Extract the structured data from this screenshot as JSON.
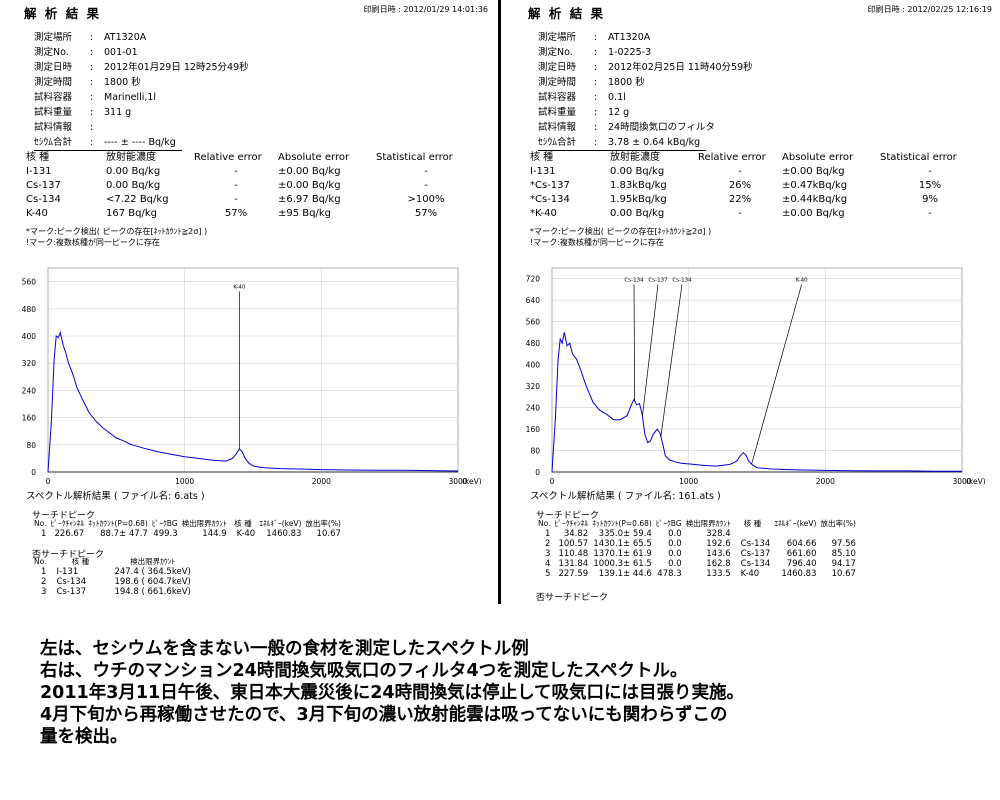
{
  "left": {
    "title": "解 析 結 果",
    "print_date": "印刷日時 : 2012/01/29 14:01:36",
    "meta": [
      {
        "label": "測定場所",
        "value": "AT1320A"
      },
      {
        "label": "測定No.",
        "value": "001-01"
      },
      {
        "label": "測定日時",
        "value": "2012年01月29日 12時25分49秒"
      },
      {
        "label": "測定時間",
        "value": "1800 秒"
      },
      {
        "label": "試料容器",
        "value": "Marinelli,1l"
      },
      {
        "label": "試料重量",
        "value": "311 g"
      },
      {
        "label": "試料情報",
        "value": ""
      },
      {
        "label": "ｾｼｳﾑ合計",
        "value": "---- ± ---- Bq/kg"
      }
    ],
    "table_headers": [
      "核 種",
      "放射能濃度",
      "Relative error",
      "Absolute error",
      "Statistical error"
    ],
    "nuclides": [
      {
        "mark": "",
        "name": "I-131",
        "conc": "0.00 Bq/kg",
        "rel": "-",
        "abs": "±0.00 Bq/kg",
        "stat": "-"
      },
      {
        "mark": "",
        "name": "Cs-137",
        "conc": "0.00 Bq/kg",
        "rel": "-",
        "abs": "±0.00 Bq/kg",
        "stat": "-"
      },
      {
        "mark": "",
        "name": "Cs-134",
        "conc": "<7.22 Bq/kg",
        "rel": "-",
        "abs": "±6.97 Bq/kg",
        "stat": ">100%"
      },
      {
        "mark": "",
        "name": "K-40",
        "conc": "167 Bq/kg",
        "rel": "57%",
        "abs": "±95  Bq/kg",
        "stat": "57%"
      }
    ],
    "notes": [
      "*マーク:ピーク検出( ピークの存在[ﾈｯﾄｶｳﾝﾄ≧2σ] )",
      "!マーク:複数核種が同一ピークに存在"
    ],
    "analysis_title": "スペクトル解析結果 ( ファイル名: 6.ats )",
    "search_peak_title": "サーチドピーク",
    "peak_headers": [
      "No.",
      "ﾋﾟｰｸﾁｬﾝﾈﾙ",
      "ﾈｯﾄｶｳﾝﾄ(P=0.68)",
      "ﾋﾟｰｸBG",
      "検出限界ｶｳﾝﾄ",
      "核 種",
      "ｴﾈﾙｷﾞｰ(keV)",
      "放出率(%)"
    ],
    "peaks": [
      [
        "1",
        "226.67",
        "88.7± 47.7",
        "499.3",
        "144.9",
        "K-40",
        "1460.83",
        "10.67"
      ]
    ],
    "nonsearch_title": "否サーチドピーク",
    "nonsearch_headers": [
      "No.",
      "核 種",
      "検出限界ｶｳﾝﾄ"
    ],
    "nonsearch": [
      [
        "1",
        "I-131",
        "247.4 ( 364.5keV)"
      ],
      [
        "2",
        "Cs-134",
        "198.6 ( 604.7keV)"
      ],
      [
        "3",
        "Cs-137",
        "194.8 ( 661.6keV)"
      ]
    ]
  },
  "right": {
    "title": "解 析 結 果",
    "print_date": "印刷日時 : 2012/02/25 12:16:19",
    "meta": [
      {
        "label": "測定場所",
        "value": "AT1320A"
      },
      {
        "label": "測定No.",
        "value": "1-0225-3"
      },
      {
        "label": "測定日時",
        "value": "2012年02月25日 11時40分59秒"
      },
      {
        "label": "測定時間",
        "value": "1800 秒"
      },
      {
        "label": "試料容器",
        "value": "0.1l"
      },
      {
        "label": "試料重量",
        "value": "12 g"
      },
      {
        "label": "試料情報",
        "value": "24時間換気口のフィルタ"
      },
      {
        "label": "ｾｼｳﾑ合計",
        "value": "3.78 ± 0.64 kBq/kg"
      }
    ],
    "table_headers": [
      "核 種",
      "放射能濃度",
      "Relative error",
      "Absolute error",
      "Statistical error"
    ],
    "nuclides": [
      {
        "mark": "",
        "name": "I-131",
        "conc": "0.00 Bq/kg",
        "rel": "-",
        "abs": "±0.00 Bq/kg",
        "stat": "-"
      },
      {
        "mark": "*",
        "name": "Cs-137",
        "conc": "1.83kBq/kg",
        "rel": "26%",
        "abs": "±0.47kBq/kg",
        "stat": "15%"
      },
      {
        "mark": "*",
        "name": "Cs-134",
        "conc": "1.95kBq/kg",
        "rel": "22%",
        "abs": "±0.44kBq/kg",
        "stat": "9%"
      },
      {
        "mark": "*",
        "name": "K-40",
        "conc": "0.00 Bq/kg",
        "rel": "-",
        "abs": "±0.00 Bq/kg",
        "stat": "-"
      }
    ],
    "notes": [
      "*マーク:ピーク検出( ピークの存在[ﾈｯﾄｶｳﾝﾄ≧2σ] )",
      "!マーク:複数核種が同一ピークに存在"
    ],
    "analysis_title": "スペクトル解析結果 ( ファイル名: 161.ats )",
    "search_peak_title": "サーチドピーク",
    "peak_headers": [
      "No.",
      "ﾋﾟｰｸﾁｬﾝﾈﾙ",
      "ﾈｯﾄｶｳﾝﾄ(P=0.68)",
      "ﾋﾟｰｸBG",
      "検出限界ｶｳﾝﾄ",
      "核 種",
      "ｴﾈﾙｷﾞｰ(keV)",
      "放出率(%)"
    ],
    "peaks": [
      [
        "1",
        "34.82",
        "335.0± 59.4",
        "0.0",
        "328.4",
        "",
        "",
        ""
      ],
      [
        "2",
        "100.57",
        "1430.1± 65.5",
        "0.0",
        "192.6",
        "Cs-134",
        "604.66",
        "97.56"
      ],
      [
        "3",
        "110.48",
        "1370.1± 61.9",
        "0.0",
        "143.6",
        "Cs-137",
        "661.60",
        "85.10"
      ],
      [
        "4",
        "131.84",
        "1000.3± 61.5",
        "0.0",
        "162.8",
        "Cs-134",
        "796.40",
        "94.17"
      ],
      [
        "5",
        "227.59",
        "139.1± 44.6",
        "478.3",
        "133.5",
        "K-40",
        "1460.83",
        "10.67"
      ]
    ],
    "nonsearch_title": "否サーチドピーク"
  },
  "chart_data": [
    {
      "type": "line",
      "x_unit": "(keV)",
      "xlim": [
        0,
        3000
      ],
      "ylim": [
        0,
        600
      ],
      "x_ticks": [
        0,
        1000,
        2000,
        3000
      ],
      "y_ticks": [
        0,
        80,
        160,
        240,
        320,
        400,
        480,
        560
      ],
      "grid": true,
      "color": "#0000dd",
      "series": [
        {
          "x": [
            0,
            25,
            45,
            60,
            75,
            90,
            110,
            130,
            150,
            180,
            210,
            250,
            300,
            350,
            400,
            450,
            500,
            550,
            600,
            650,
            700,
            800,
            900,
            1000,
            1100,
            1200,
            1300,
            1350,
            1380,
            1400,
            1420,
            1440,
            1470,
            1500,
            1550,
            1600,
            1700,
            1800,
            2000,
            2200,
            2400,
            2600,
            2800,
            3000
          ],
          "y": [
            0,
            150,
            330,
            400,
            395,
            410,
            375,
            350,
            320,
            290,
            250,
            215,
            175,
            150,
            130,
            115,
            100,
            92,
            82,
            76,
            70,
            60,
            52,
            45,
            40,
            35,
            32,
            40,
            55,
            68,
            60,
            42,
            26,
            18,
            14,
            12,
            10,
            9,
            7,
            6,
            5,
            5,
            4,
            3
          ]
        }
      ],
      "annotations": [
        {
          "label": "K-40",
          "x": 1400,
          "y": 540
        }
      ]
    },
    {
      "type": "line",
      "x_unit": "(keV)",
      "xlim": [
        0,
        3000
      ],
      "ylim": [
        0,
        760
      ],
      "x_ticks": [
        0,
        1000,
        2000,
        3000
      ],
      "y_ticks": [
        0,
        80,
        160,
        240,
        320,
        400,
        480,
        560,
        640,
        720
      ],
      "grid": true,
      "color": "#0000dd",
      "series": [
        {
          "x": [
            0,
            25,
            45,
            60,
            75,
            90,
            110,
            130,
            150,
            180,
            210,
            250,
            300,
            350,
            400,
            450,
            500,
            550,
            580,
            600,
            620,
            640,
            660,
            680,
            700,
            720,
            740,
            770,
            790,
            810,
            830,
            860,
            900,
            950,
            1000,
            1100,
            1200,
            1300,
            1350,
            1380,
            1400,
            1420,
            1440,
            1470,
            1500,
            1600,
            1800,
            2000,
            2200,
            2400,
            2600,
            2800,
            3000
          ],
          "y": [
            0,
            200,
            420,
            495,
            480,
            520,
            470,
            480,
            440,
            420,
            380,
            320,
            260,
            230,
            215,
            195,
            195,
            210,
            250,
            270,
            250,
            255,
            215,
            140,
            110,
            115,
            140,
            160,
            145,
            105,
            60,
            45,
            38,
            32,
            30,
            25,
            22,
            28,
            40,
            62,
            72,
            62,
            40,
            25,
            16,
            11,
            8,
            6,
            5,
            4,
            4,
            3,
            3
          ]
        }
      ],
      "annotations": [
        {
          "label": "Cs-134",
          "x": 604.66,
          "y": 710
        },
        {
          "label": "Cs-137",
          "x": 661.6,
          "y": 710
        },
        {
          "label": "Cs-134",
          "x": 796.4,
          "y": 710
        },
        {
          "label": "K-40",
          "x": 1460.83,
          "y": 710
        }
      ]
    }
  ],
  "caption": [
    "左は、セシウムを含まない一般の食材を測定したスペクトル例",
    "右は、ウチのマンション24時間換気吸気口のフィルタ4つを測定したスペクトル。",
    "2011年3月11日午後、東日本大震災後に24時間換気は停止して吸気口には目張り実施。",
    "4月下旬から再稼働させたので、3月下旬の濃い放射能雲は吸ってないにも関わらずこの",
    "量を検出。"
  ]
}
